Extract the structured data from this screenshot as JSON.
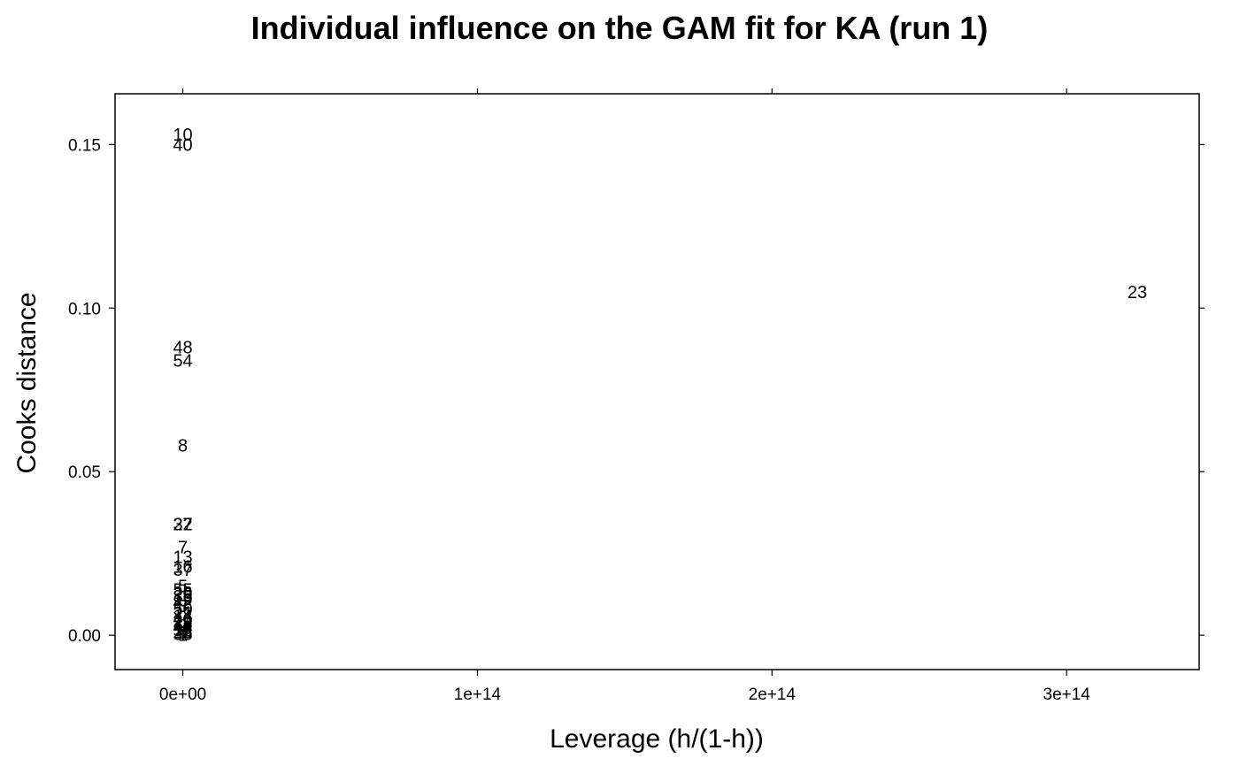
{
  "chart_data": {
    "type": "scatter",
    "title": "Individual influence on the GAM fit for KA (run 1)",
    "xlabel": "Leverage (h/(1-h))",
    "ylabel": "Cooks distance",
    "xlim": [
      -23000000000000.0,
      345000000000000.0
    ],
    "ylim": [
      -0.0105,
      0.1655
    ],
    "xticks": [
      0,
      100000000000000.0,
      200000000000000.0,
      300000000000000.0
    ],
    "xtick_labels": [
      "0e+00",
      "1e+14",
      "2e+14",
      "3e+14"
    ],
    "yticks": [
      0.0,
      0.05,
      0.1,
      0.15
    ],
    "ytick_labels": [
      "0.00",
      "0.05",
      "0.10",
      "0.15"
    ],
    "grid": false,
    "marker": "text labels (observation index)",
    "points": [
      {
        "label": "10",
        "x": 0,
        "y": 0.153
      },
      {
        "label": "40",
        "x": 0,
        "y": 0.15
      },
      {
        "label": "23",
        "x": 324000000000000.0,
        "y": 0.105
      },
      {
        "label": "48",
        "x": 0,
        "y": 0.088
      },
      {
        "label": "54",
        "x": 0,
        "y": 0.084
      },
      {
        "label": "8",
        "x": 0,
        "y": 0.058
      },
      {
        "label": "32",
        "x": 0,
        "y": 0.034
      },
      {
        "label": "27",
        "x": 0,
        "y": 0.034
      },
      {
        "label": "7",
        "x": 0,
        "y": 0.027
      },
      {
        "label": "13",
        "x": 0,
        "y": 0.024
      },
      {
        "label": "16",
        "x": 0,
        "y": 0.021
      },
      {
        "label": "37",
        "x": 0,
        "y": 0.02
      },
      {
        "label": "5",
        "x": 0,
        "y": 0.015
      },
      {
        "label": "55",
        "x": 0,
        "y": 0.014
      },
      {
        "label": "26",
        "x": 0,
        "y": 0.013
      },
      {
        "label": "35",
        "x": 0,
        "y": 0.012
      },
      {
        "label": "19",
        "x": 0,
        "y": 0.011
      },
      {
        "label": "42",
        "x": 0,
        "y": 0.01
      },
      {
        "label": "3",
        "x": 0,
        "y": 0.009
      },
      {
        "label": "50",
        "x": 0,
        "y": 0.008
      },
      {
        "label": "21",
        "x": 0,
        "y": 0.007
      },
      {
        "label": "14",
        "x": 0,
        "y": 0.006
      },
      {
        "label": "46",
        "x": 0,
        "y": 0.005
      },
      {
        "label": "29",
        "x": 0,
        "y": 0.0045
      },
      {
        "label": "11",
        "x": 0,
        "y": 0.004
      },
      {
        "label": "38",
        "x": 0,
        "y": 0.0035
      },
      {
        "label": "2",
        "x": 0,
        "y": 0.003
      },
      {
        "label": "44",
        "x": 0,
        "y": 0.0025
      },
      {
        "label": "17",
        "x": 0,
        "y": 0.002
      },
      {
        "label": "52",
        "x": 0,
        "y": 0.0015
      },
      {
        "label": "25",
        "x": 0,
        "y": 0.001
      },
      {
        "label": "9",
        "x": 0,
        "y": 0.0007
      },
      {
        "label": "33",
        "x": 0,
        "y": 0.0004
      },
      {
        "label": "1",
        "x": 0,
        "y": 0.0002
      }
    ]
  }
}
